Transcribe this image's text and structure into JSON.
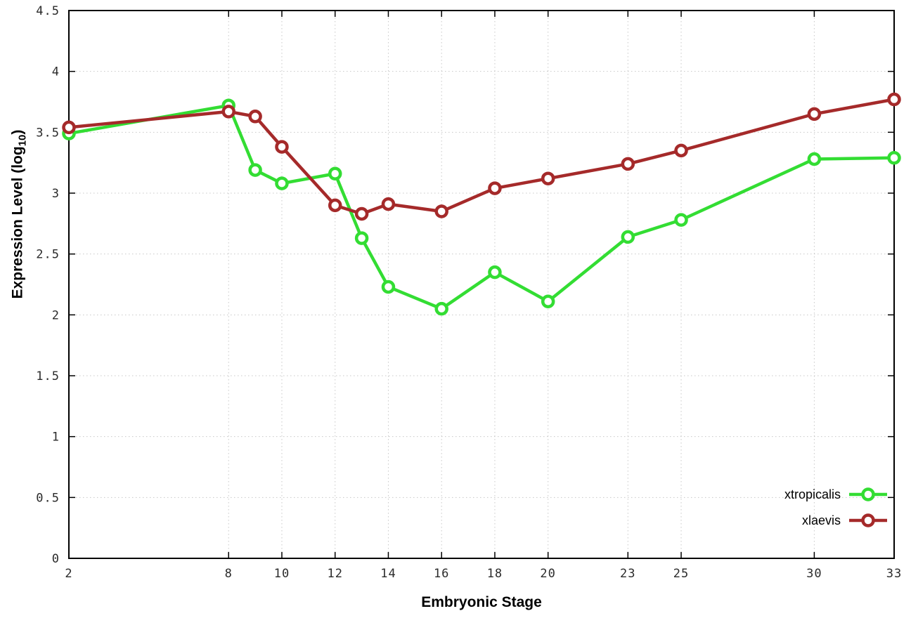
{
  "page": {
    "background_color": "#ffffff",
    "text_color": "#000000"
  },
  "chart_data": {
    "type": "line",
    "title": "",
    "xlabel": "Embryonic Stage",
    "ylabel": "Expression Level (log10)",
    "ylabel_parts": {
      "prefix": "Expression Level (log",
      "sub": "10",
      "suffix": ")"
    },
    "xlim": [
      2,
      33
    ],
    "ylim": [
      0,
      4.5
    ],
    "x_ticks": [
      2,
      8,
      10,
      12,
      14,
      16,
      18,
      20,
      23,
      25,
      30,
      33
    ],
    "y_ticks": [
      0,
      0.5,
      1,
      1.5,
      2,
      2.5,
      3,
      3.5,
      4,
      4.5
    ],
    "grid": true,
    "grid_color": "#c8c8c8",
    "border_color": "#000000",
    "legend_position": "bottom-right",
    "x": [
      2,
      8,
      9,
      10,
      12,
      13,
      14,
      16,
      18,
      20,
      23,
      25,
      30,
      33
    ],
    "series": [
      {
        "name": "xtropicalis",
        "color": "#33dd33",
        "marker": "open-circle",
        "values": [
          3.49,
          3.72,
          3.19,
          3.08,
          3.16,
          2.63,
          2.23,
          2.05,
          2.35,
          2.11,
          2.64,
          2.78,
          3.28,
          3.29
        ]
      },
      {
        "name": "xlaevis",
        "color": "#a52a2a",
        "marker": "open-circle",
        "values": [
          3.54,
          3.67,
          3.63,
          3.38,
          2.9,
          2.83,
          2.91,
          2.85,
          3.04,
          3.12,
          3.24,
          3.35,
          3.65,
          3.77
        ]
      }
    ]
  }
}
